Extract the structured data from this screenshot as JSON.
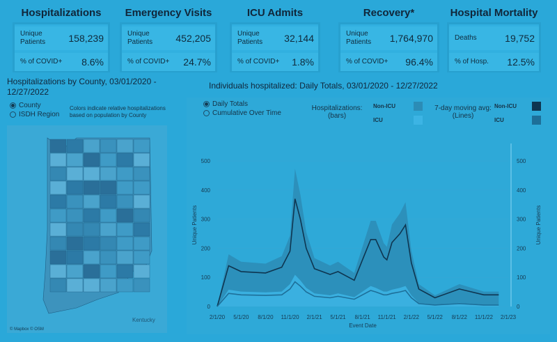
{
  "kpis": [
    {
      "title": "Hospitalizations",
      "row1_label": "Unique\nPatients",
      "row1_value": "158,239",
      "row2_label": "% of COVID+",
      "row2_value": "8.6%"
    },
    {
      "title": "Emergency Visits",
      "row1_label": "Unique\nPatients",
      "row1_value": "452,205",
      "row2_label": "% of COVID+",
      "row2_value": "24.7%"
    },
    {
      "title": "ICU Admits",
      "row1_label": "Unique\nPatients",
      "row1_value": "32,144",
      "row2_label": "% of COVID+",
      "row2_value": "1.8%"
    },
    {
      "title": "Recovery*",
      "row1_label": "Unique\nPatients",
      "row1_value": "1,764,970",
      "row2_label": "% of COVID+",
      "row2_value": "96.4%"
    },
    {
      "title": "Hospital Mortality",
      "row1_label": "Deaths",
      "row1_value": "19,752",
      "row2_label": "% of Hosp.",
      "row2_value": "12.5%"
    }
  ],
  "map_section": {
    "title": "Hospitalizations by County, 03/01/2020 - 12/27/2022",
    "radio_county": "County",
    "radio_isdh": "ISDH Region",
    "note": "Colors indicate relative hospitalizations based on population by County",
    "kentucky_label": "Kentucky",
    "attribution": "© Mapbox © OSM"
  },
  "chart_section": {
    "title": "Individuals hospitalized: Daily Totals, 03/01/2020 - 12/27/2022",
    "radio_daily": "Daily Totals",
    "radio_cumulative": "Cumulative Over Time",
    "bars_label": "Hospitalizations:\n(bars)",
    "lines_label": "7-day moving avg:\n(Lines)",
    "legend_nonicu": "Non-ICU",
    "legend_icu": "ICU"
  },
  "colors": {
    "background": "#2aa8d9",
    "nonicu_bar": "#2b8cb6",
    "icu_bar": "#3cb4e4",
    "nonicu_line": "#0e3550",
    "icu_line": "#1d6f99"
  },
  "chart_data": {
    "type": "area",
    "xlabel": "Event Date",
    "ylabel": "Unique Patients",
    "ylim": [
      0,
      560
    ],
    "yticks": [
      0,
      100,
      200,
      300,
      400,
      500
    ],
    "xticks": [
      "2/1/20",
      "5/1/20",
      "8/1/20",
      "11/1/20",
      "2/1/21",
      "5/1/21",
      "8/1/21",
      "11/1/21",
      "2/1/22",
      "5/1/22",
      "8/1/22",
      "11/1/22",
      "2/1/23"
    ],
    "x": [
      "2/1/20",
      "3/15/20",
      "5/1/20",
      "8/1/20",
      "10/1/20",
      "11/1/20",
      "11/20/20",
      "12/10/20",
      "1/1/21",
      "2/1/21",
      "4/1/21",
      "5/1/21",
      "7/1/21",
      "8/1/21",
      "9/1/21",
      "9/20/21",
      "10/20/21",
      "11/1/21",
      "11/20/21",
      "12/20/21",
      "1/10/22",
      "2/1/22",
      "3/1/22",
      "5/1/22",
      "8/1/22",
      "11/1/22",
      "12/27/22"
    ],
    "series": [
      {
        "name": "Non-ICU",
        "values": [
          0,
          140,
          120,
          115,
          135,
          190,
          370,
          300,
          200,
          130,
          110,
          120,
          90,
          160,
          230,
          230,
          170,
          160,
          220,
          250,
          280,
          150,
          60,
          30,
          60,
          40,
          40
        ]
      },
      {
        "name": "ICU",
        "values": [
          0,
          45,
          40,
          38,
          40,
          60,
          85,
          70,
          50,
          35,
          30,
          35,
          25,
          40,
          55,
          50,
          40,
          40,
          45,
          50,
          55,
          30,
          10,
          5,
          10,
          5,
          5
        ]
      }
    ]
  }
}
